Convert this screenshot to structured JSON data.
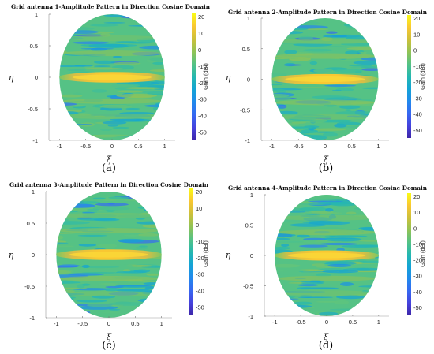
{
  "chart_data": [
    {
      "type": "heatmap",
      "title": "Grid antenna 1-Amplitude Pattern in Direction Cosine Domain",
      "xlabel": "ξ",
      "ylabel": "η",
      "x_ticks": [
        "-1",
        "-0.5",
        "0",
        "0.5",
        "1"
      ],
      "y_ticks": [
        "1",
        "0.5",
        "0",
        "-0.5",
        "-1"
      ],
      "colorbar_label": "Gain (dBi)",
      "colorbar_ticks": [
        "20",
        "10",
        "0",
        "-10",
        "-20",
        "-30",
        "-40",
        "-50"
      ],
      "clim": [
        -55,
        22
      ],
      "xlim": [
        -1.2,
        1.2
      ],
      "ylim": [
        -1,
        1
      ],
      "caption": "(a)"
    },
    {
      "type": "heatmap",
      "title": "Grid antenna 2-Amplitude Pattern in Direction Cosine Domain",
      "xlabel": "ξ",
      "ylabel": "η",
      "x_ticks": [
        "-1",
        "-0.5",
        "0",
        "0.5",
        "1"
      ],
      "y_ticks": [
        "1",
        "0.5",
        "0",
        "-0.5",
        "-1"
      ],
      "colorbar_label": "Gain (dBi)",
      "colorbar_ticks": [
        "20",
        "10",
        "0",
        "-10",
        "-20",
        "-30",
        "-40",
        "-50"
      ],
      "clim": [
        -55,
        22
      ],
      "xlim": [
        -1.2,
        1.2
      ],
      "ylim": [
        -1,
        1
      ],
      "caption": "(b)"
    },
    {
      "type": "heatmap",
      "title": "Grid antenna 3-Amplitude Pattern in Direction Cosine Domain",
      "xlabel": "ξ",
      "ylabel": "η",
      "x_ticks": [
        "-1",
        "-0.5",
        "0",
        "0.5",
        "1"
      ],
      "y_ticks": [
        "1",
        "0.5",
        "0",
        "-0.5",
        "-1"
      ],
      "colorbar_label": "Gain (dBi)",
      "colorbar_ticks": [
        "20",
        "10",
        "0",
        "-10",
        "-20",
        "-30",
        "-40",
        "-50"
      ],
      "clim": [
        -55,
        22
      ],
      "xlim": [
        -1.2,
        1.2
      ],
      "ylim": [
        -1,
        1
      ],
      "caption": "(c)"
    },
    {
      "type": "heatmap",
      "title": "Grid antenna 4-Amplitude Pattern in Direction Cosine Domain",
      "xlabel": "ξ",
      "ylabel": "η",
      "x_ticks": [
        "-1",
        "-0.5",
        "0",
        "0.5",
        "1"
      ],
      "y_ticks": [
        "1",
        "0.5",
        "0",
        "-0.5",
        "-1"
      ],
      "colorbar_label": "Gain (dBi)",
      "colorbar_ticks": [
        "20",
        "10",
        "0",
        "-10",
        "-20",
        "-30",
        "-40",
        "-50"
      ],
      "clim": [
        -55,
        22
      ],
      "xlim": [
        -1.2,
        1.2
      ],
      "ylim": [
        -1,
        1
      ],
      "caption": "(d)"
    }
  ],
  "colors": {
    "parula_low": "#3e26a8",
    "parula_mid": "#2fbeab",
    "parula_high": "#f9fb15",
    "main_beam": "#f5c23a",
    "background_field": "#4cc08a"
  }
}
